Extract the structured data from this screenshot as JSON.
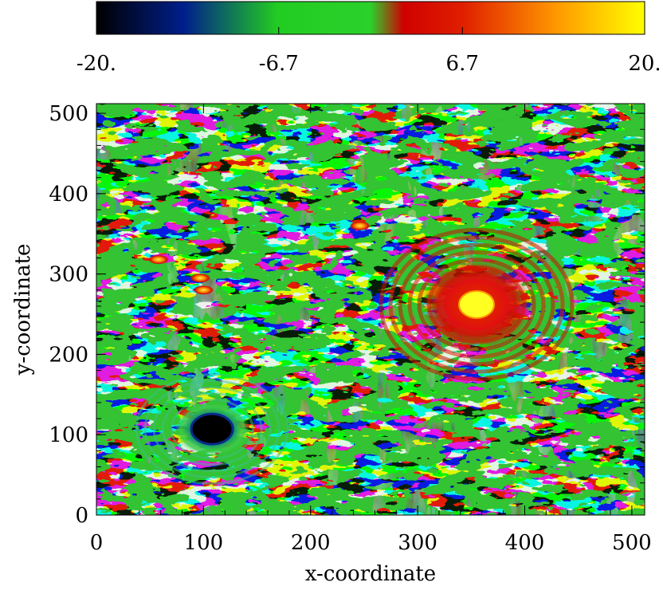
{
  "chart_data": {
    "type": "heatmap",
    "title": "",
    "xlabel": "x-coordinate",
    "ylabel": "y-coordinate",
    "xlim": [
      0,
      512
    ],
    "ylim": [
      0,
      512
    ],
    "xticks": [
      0,
      100,
      200,
      300,
      400,
      500
    ],
    "yticks": [
      0,
      100,
      200,
      300,
      400,
      500
    ],
    "xtick_labels": [
      "0",
      "100",
      "200",
      "300",
      "400",
      "500"
    ],
    "ytick_labels": [
      "0",
      "100",
      "200",
      "300",
      "400",
      "500"
    ],
    "colorbar": {
      "range": [
        -20,
        20
      ],
      "tick_values": [
        -20,
        -6.7,
        6.7,
        20
      ],
      "tick_labels": [
        "-20.",
        "-6.7",
        "6.7",
        "20."
      ],
      "placement": "top",
      "colors": [
        "#000000",
        "#001f8c",
        "#22cc22",
        "#2bd12b",
        "#d00000",
        "#e02000",
        "#ff9900",
        "#ffff00"
      ]
    },
    "features": [
      {
        "kind": "vortex",
        "sign": "negative",
        "x": 108,
        "y": 107,
        "value": -20
      },
      {
        "kind": "vortex",
        "sign": "positive",
        "x": 355,
        "y": 262,
        "value": 20
      },
      {
        "kind": "small-vortex",
        "sign": "positive",
        "x": 58,
        "y": 318,
        "value": 14
      },
      {
        "kind": "small-vortex",
        "sign": "positive",
        "x": 97,
        "y": 295,
        "value": 12
      },
      {
        "kind": "small-vortex",
        "sign": "positive",
        "x": 100,
        "y": 280,
        "value": 12
      },
      {
        "kind": "small-vortex",
        "sign": "positive",
        "x": 246,
        "y": 360,
        "value": 12
      }
    ],
    "grid": false,
    "legend": "none"
  }
}
